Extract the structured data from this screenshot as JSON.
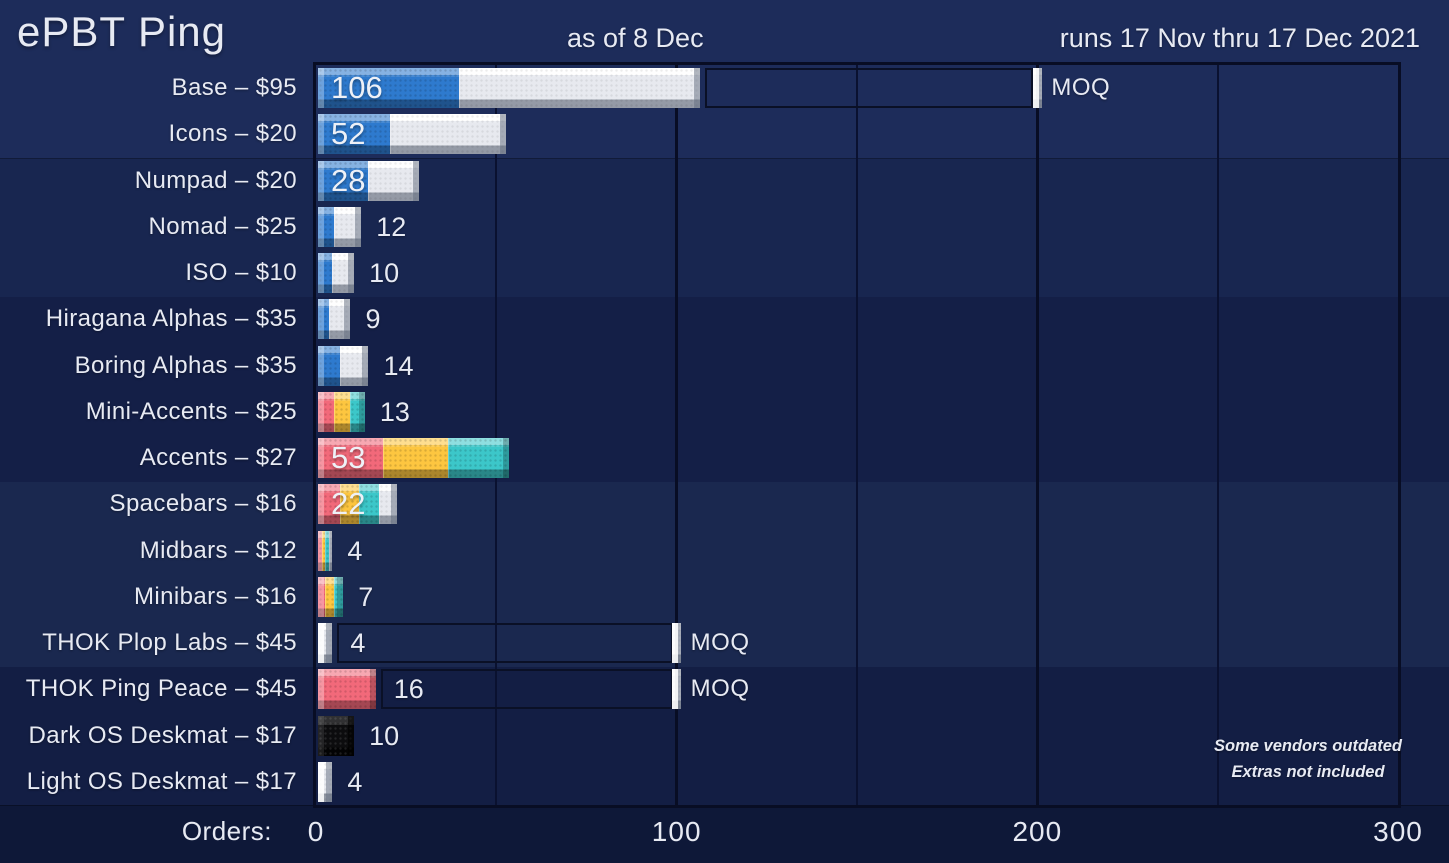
{
  "header": {
    "title": "ePBT Ping",
    "as_of": "as of 8 Dec",
    "runs": "runs 17 Nov thru 17 Dec 2021"
  },
  "axis": {
    "label": "Orders:",
    "ticks": [
      0,
      100,
      200,
      300
    ],
    "max": 300,
    "grid_step": 50
  },
  "note": {
    "line1": "Some vendors outdated",
    "line2": "Extras not included"
  },
  "moq_label": "MOQ",
  "colors": {
    "text": "#e7eaf3",
    "bands": [
      "#1d2c5a",
      "#182650",
      "#141f47",
      "#1a284f",
      "#131e44"
    ],
    "footer_bg": "#0e1838",
    "grid_major": "#080d24",
    "grid_minor": "#0a1130",
    "moq_box_border": "#0a1026",
    "caps": {
      "blue": "#2e7ace",
      "white": "#e7e9ef",
      "red": "#f2697a",
      "yellow": "#fdc640",
      "teal": "#3cc7c9",
      "black": "#0c0c0e"
    }
  },
  "chart_data": {
    "type": "bar",
    "orientation": "horizontal",
    "title": "ePBT Ping",
    "xlabel": "Orders",
    "xlim": [
      0,
      300
    ],
    "gridlines": [
      50,
      100,
      150,
      200,
      250
    ],
    "legend": "none",
    "categories": [
      "Base – $95",
      "Icons – $20",
      "Numpad – $20",
      "Nomad – $25",
      "ISO – $10",
      "Hiragana Alphas – $35",
      "Boring Alphas – $35",
      "Mini-Accents – $25",
      "Accents – $27",
      "Spacebars – $16",
      "Midbars – $12",
      "Minibars – $16",
      "THOK Plop Labs – $45",
      "THOK Ping Peace – $45",
      "Dark OS Deskmat – $17",
      "Light OS Deskmat – $17"
    ],
    "values": [
      106,
      52,
      28,
      12,
      10,
      9,
      14,
      13,
      53,
      22,
      4,
      7,
      4,
      16,
      10,
      4
    ],
    "moq_markers": {
      "Base – $95": 200,
      "THOK Plop Labs – $45": 100,
      "THOK Ping Peace – $45": 100
    },
    "band_groups": [
      [
        0,
        1
      ],
      [
        2,
        3,
        4
      ],
      [
        5,
        6,
        7,
        8
      ],
      [
        9,
        10,
        11,
        12
      ],
      [
        13,
        14,
        15
      ]
    ],
    "rows": [
      {
        "label": "Base – $95",
        "total": 106,
        "moq": 200,
        "segments": [
          {
            "color": "blue",
            "value": 39
          },
          {
            "color": "white",
            "value": 67
          }
        ]
      },
      {
        "label": "Icons – $20",
        "total": 52,
        "segments": [
          {
            "color": "blue",
            "value": 20
          },
          {
            "color": "white",
            "value": 32
          }
        ]
      },
      {
        "label": "Numpad – $20",
        "total": 28,
        "segments": [
          {
            "color": "blue",
            "value": 14
          },
          {
            "color": "white",
            "value": 14
          }
        ]
      },
      {
        "label": "Nomad – $25",
        "total": 12,
        "segments": [
          {
            "color": "blue",
            "value": 4.5
          },
          {
            "color": "white",
            "value": 7.5
          }
        ]
      },
      {
        "label": "ISO – $10",
        "total": 10,
        "segments": [
          {
            "color": "blue",
            "value": 4
          },
          {
            "color": "white",
            "value": 6
          }
        ]
      },
      {
        "label": "Hiragana Alphas – $35",
        "total": 9,
        "segments": [
          {
            "color": "blue",
            "value": 3
          },
          {
            "color": "white",
            "value": 6
          }
        ]
      },
      {
        "label": "Boring Alphas – $35",
        "total": 14,
        "segments": [
          {
            "color": "blue",
            "value": 6
          },
          {
            "color": "white",
            "value": 8
          }
        ]
      },
      {
        "label": "Mini-Accents – $25",
        "total": 13,
        "segments": [
          {
            "color": "red",
            "value": 4.5
          },
          {
            "color": "yellow",
            "value": 4.5
          },
          {
            "color": "teal",
            "value": 4
          }
        ]
      },
      {
        "label": "Accents – $27",
        "total": 53,
        "segments": [
          {
            "color": "red",
            "value": 18
          },
          {
            "color": "yellow",
            "value": 18
          },
          {
            "color": "teal",
            "value": 17
          }
        ]
      },
      {
        "label": "Spacebars – $16",
        "total": 22,
        "segments": [
          {
            "color": "red",
            "value": 6
          },
          {
            "color": "yellow",
            "value": 5.5
          },
          {
            "color": "teal",
            "value": 5.5
          },
          {
            "color": "white",
            "value": 5
          }
        ]
      },
      {
        "label": "Midbars – $12",
        "total": 4,
        "segments": [
          {
            "color": "red",
            "value": 1
          },
          {
            "color": "yellow",
            "value": 1
          },
          {
            "color": "teal",
            "value": 1
          },
          {
            "color": "white",
            "value": 1
          }
        ]
      },
      {
        "label": "Minibars – $16",
        "total": 7,
        "segments": [
          {
            "color": "red",
            "value": 2
          },
          {
            "color": "yellow",
            "value": 2.5
          },
          {
            "color": "teal",
            "value": 2.5
          }
        ]
      },
      {
        "label": "THOK Plop Labs – $45",
        "total": 4,
        "moq": 100,
        "segments": [
          {
            "color": "white",
            "value": 4
          }
        ]
      },
      {
        "label": "THOK Ping Peace – $45",
        "total": 16,
        "moq": 100,
        "segments": [
          {
            "color": "red",
            "value": 16
          }
        ]
      },
      {
        "label": "Dark OS Deskmat – $17",
        "total": 10,
        "segments": [
          {
            "color": "black",
            "value": 10
          }
        ]
      },
      {
        "label": "Light OS Deskmat – $17",
        "total": 4,
        "segments": [
          {
            "color": "white",
            "value": 4
          }
        ]
      }
    ]
  }
}
